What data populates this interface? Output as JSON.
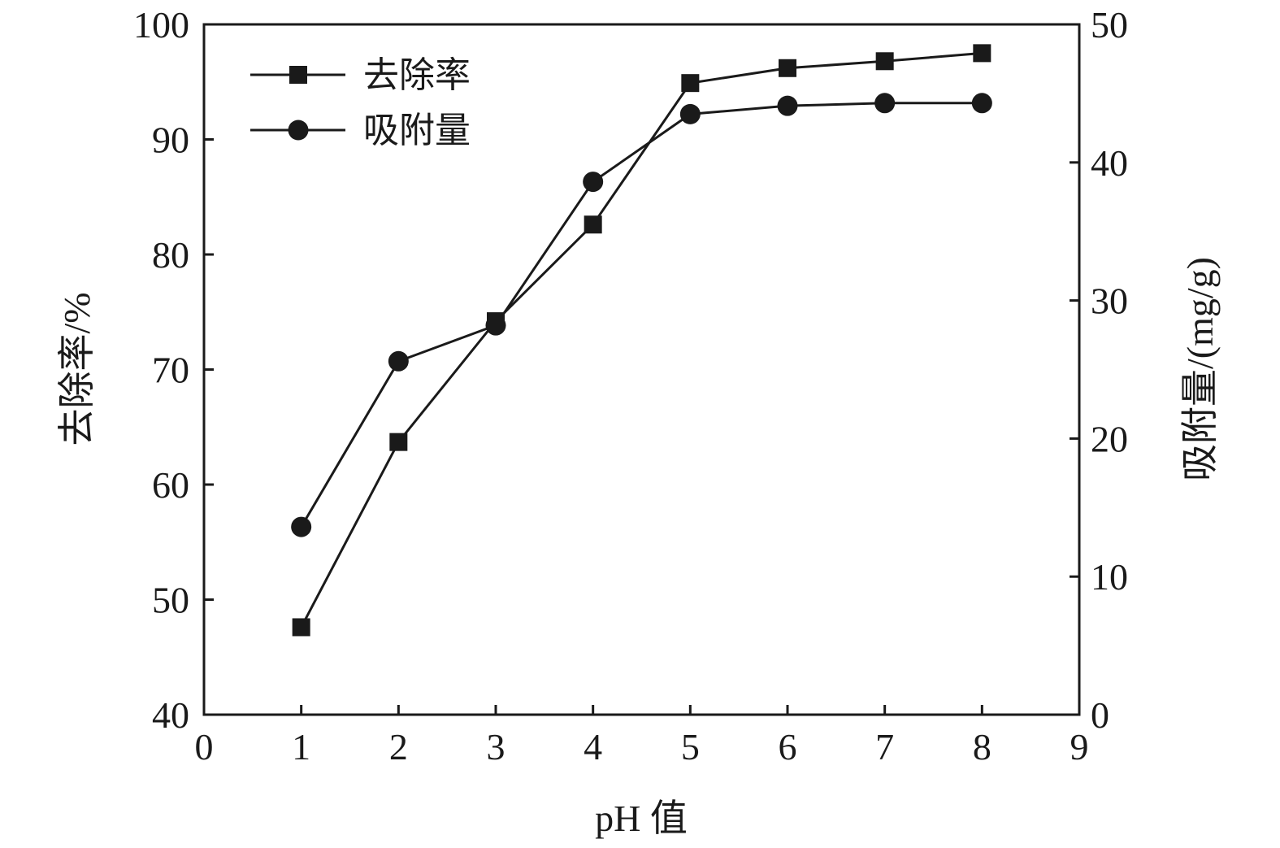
{
  "chart_data": {
    "type": "line",
    "xlabel": "pH 值",
    "ylabel_left": "去除率/%",
    "ylabel_right": "吸附量/(mg/g)",
    "xlim": [
      0,
      9
    ],
    "ylim_left": [
      40,
      100
    ],
    "ylim_right": [
      0,
      50
    ],
    "xticks": [
      "0",
      "1",
      "2",
      "3",
      "4",
      "5",
      "6",
      "7",
      "8",
      "9"
    ],
    "yticks_left": [
      "40",
      "50",
      "60",
      "70",
      "80",
      "90",
      "100"
    ],
    "yticks_right": [
      "0",
      "10",
      "20",
      "30",
      "40",
      "50"
    ],
    "grid": false,
    "legend_position": "top-left",
    "x": [
      1,
      2,
      3,
      4,
      5,
      6,
      7,
      8
    ],
    "series": [
      {
        "name": "去除率",
        "axis": "left",
        "marker": "square",
        "values": [
          47.6,
          63.7,
          74.2,
          82.6,
          94.9,
          96.2,
          96.8,
          97.5
        ]
      },
      {
        "name": "吸附量",
        "axis": "right",
        "marker": "circle",
        "values": [
          13.6,
          25.6,
          28.2,
          38.6,
          43.5,
          44.1,
          44.3,
          44.3
        ]
      }
    ],
    "colors": {
      "line": "#1a1a1a",
      "marker": "#1a1a1a"
    }
  }
}
